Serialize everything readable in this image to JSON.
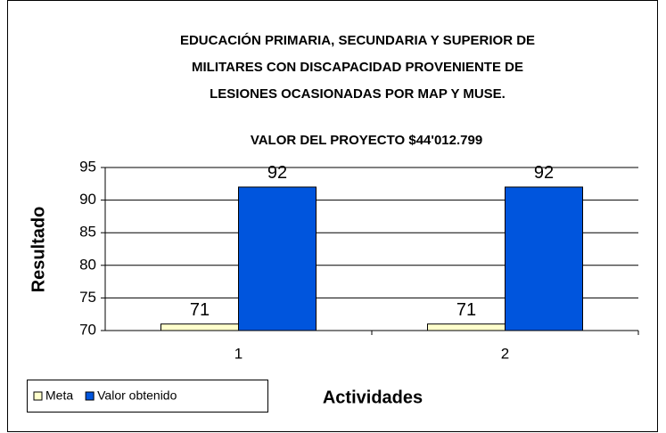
{
  "chart_data": {
    "type": "bar",
    "title": [
      "EDUCACIÓN PRIMARIA, SECUNDARIA Y SUPERIOR DE",
      "MILITARES CON DISCAPACIDAD PROVENIENTE DE",
      "LESIONES OCASIONADAS POR MAP Y MUSE."
    ],
    "subtitle": "VALOR DEL PROYECTO  $44'012.799",
    "y_label": "Resultado",
    "x_label": "Actividades",
    "categories": [
      "1",
      "2"
    ],
    "series": [
      {
        "name": "Meta",
        "color": "#ffffcc",
        "values": [
          71,
          71
        ]
      },
      {
        "name": "Valor obtenido",
        "color": "#0055dd",
        "values": [
          92,
          92
        ]
      }
    ],
    "ylim": [
      70,
      95
    ],
    "yticks": [
      70,
      75,
      80,
      85,
      90,
      95
    ],
    "grid": true,
    "legend": "bottom-left"
  }
}
